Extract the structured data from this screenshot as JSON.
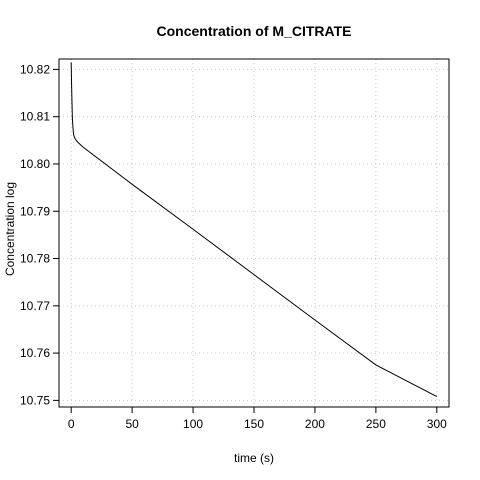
{
  "chart_data": {
    "type": "line",
    "title": "Concentration of M_CITRATE",
    "xlabel": "time (s)",
    "ylabel": "Concentration log",
    "xlim": [
      -10,
      310
    ],
    "ylim": [
      10.7486,
      10.8222
    ],
    "x_ticks": [
      0,
      50,
      100,
      150,
      200,
      250,
      300
    ],
    "y_ticks": [
      10.75,
      10.76,
      10.77,
      10.78,
      10.79,
      10.8,
      10.81,
      10.82
    ],
    "y_tick_labels": [
      "10.75",
      "10.76",
      "10.77",
      "10.78",
      "10.79",
      "10.80",
      "10.81",
      "10.82"
    ],
    "grid": true,
    "legend": "none",
    "series": [
      {
        "color": "#000000",
        "x": [
          0,
          0.2,
          0.4,
          0.6,
          1.0,
          1.5,
          2.0,
          3.0,
          5.0,
          10,
          50,
          100,
          150,
          200,
          250,
          300
        ],
        "y": [
          10.8215,
          10.8185,
          10.816,
          10.8135,
          10.8095,
          10.8075,
          10.8062,
          10.8054,
          10.8047,
          10.8035,
          10.7957,
          10.7862,
          10.7766,
          10.767,
          10.7575,
          10.7508
        ]
      }
    ]
  }
}
